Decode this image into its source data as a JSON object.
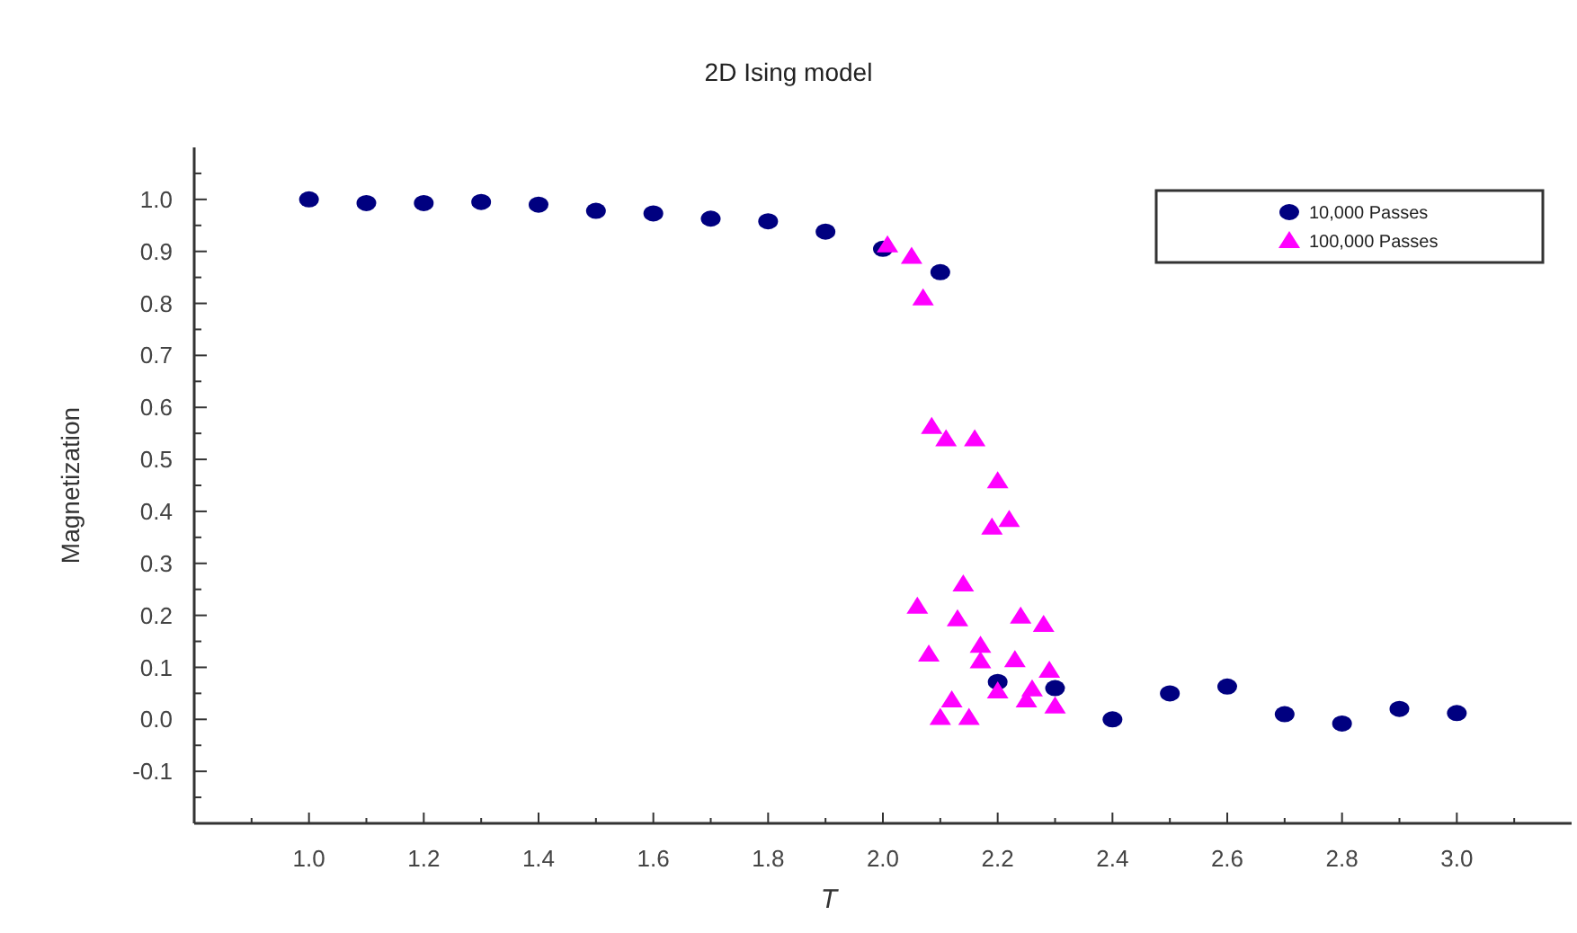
{
  "chart_data": {
    "type": "scatter",
    "title": "2D Ising model",
    "xlabel": "T",
    "ylabel": "Magnetization",
    "xlim": [
      0.8,
      3.2
    ],
    "ylim": [
      -0.2,
      1.1
    ],
    "xticks": [
      {
        "value": 0.9,
        "label": null
      },
      {
        "value": 1.0,
        "label": "1.0"
      },
      {
        "value": 1.1,
        "label": null
      },
      1.2,
      {
        "value": 1.3,
        "label": null
      },
      1.4,
      {
        "value": 1.5,
        "label": null
      },
      1.6,
      {
        "value": 1.7,
        "label": null
      },
      1.8,
      {
        "value": 1.9,
        "label": null
      },
      {
        "value": 2.0,
        "label": "2.0"
      },
      {
        "value": 2.1,
        "label": null
      },
      2.2,
      {
        "value": 2.3,
        "label": null
      },
      2.4,
      {
        "value": 2.5,
        "label": null
      },
      2.6,
      {
        "value": 2.7,
        "label": null
      },
      2.8,
      {
        "value": 2.9,
        "label": null
      },
      {
        "value": 3.0,
        "label": "3.0"
      },
      {
        "value": 3.1,
        "label": null
      }
    ],
    "yticks": [
      {
        "value": -0.15,
        "label": null
      },
      -0.1,
      {
        "value": -0.05,
        "label": null
      },
      {
        "value": 0.0,
        "label": "0.0"
      },
      {
        "value": 0.05,
        "label": null
      },
      0.1,
      {
        "value": 0.15,
        "label": null
      },
      0.2,
      {
        "value": 0.25,
        "label": null
      },
      0.3,
      {
        "value": 0.35,
        "label": null
      },
      0.4,
      {
        "value": 0.45,
        "label": null
      },
      0.5,
      {
        "value": 0.55,
        "label": null
      },
      0.6,
      {
        "value": 0.65,
        "label": null
      },
      0.7,
      {
        "value": 0.75,
        "label": null
      },
      0.8,
      {
        "value": 0.85,
        "label": null
      },
      0.9,
      {
        "value": 0.95,
        "label": null
      },
      {
        "value": 1.0,
        "label": "1.0"
      },
      {
        "value": 1.05,
        "label": null
      }
    ],
    "grid": false,
    "legend": "top right",
    "series": [
      {
        "name": "10,000 Passes",
        "color": "#000080",
        "marker": "circle",
        "x": [
          1.0,
          1.1,
          1.2,
          1.3,
          1.4,
          1.5,
          1.6,
          1.7,
          1.8,
          1.9,
          2.0,
          2.1,
          2.2,
          2.3,
          2.4,
          2.5,
          2.6,
          2.7,
          2.8,
          2.9,
          3.0
        ],
        "values": [
          1.0,
          0.993,
          0.993,
          0.995,
          0.99,
          0.978,
          0.973,
          0.963,
          0.958,
          0.938,
          0.905,
          0.86,
          0.072,
          0.06,
          0.0,
          0.05,
          0.063,
          0.01,
          -0.008,
          0.02,
          0.012
        ]
      },
      {
        "name": "100,000 Passes",
        "color": "#ff00ff",
        "marker": "triangle",
        "x": [
          2.008,
          2.05,
          2.07,
          2.085,
          2.11,
          2.16,
          2.2,
          2.22,
          2.19,
          2.14,
          2.06,
          2.13,
          2.24,
          2.28,
          2.08,
          2.17,
          2.17,
          2.23,
          2.29,
          2.2,
          2.26,
          2.25,
          2.3,
          2.12,
          2.1,
          2.15
        ],
        "values": [
          0.912,
          0.89,
          0.81,
          0.563,
          0.539,
          0.539,
          0.458,
          0.384,
          0.369,
          0.26,
          0.217,
          0.193,
          0.198,
          0.182,
          0.125,
          0.142,
          0.112,
          0.114,
          0.094,
          0.054,
          0.058,
          0.037,
          0.025,
          0.037,
          0.003,
          0.003
        ]
      }
    ]
  }
}
